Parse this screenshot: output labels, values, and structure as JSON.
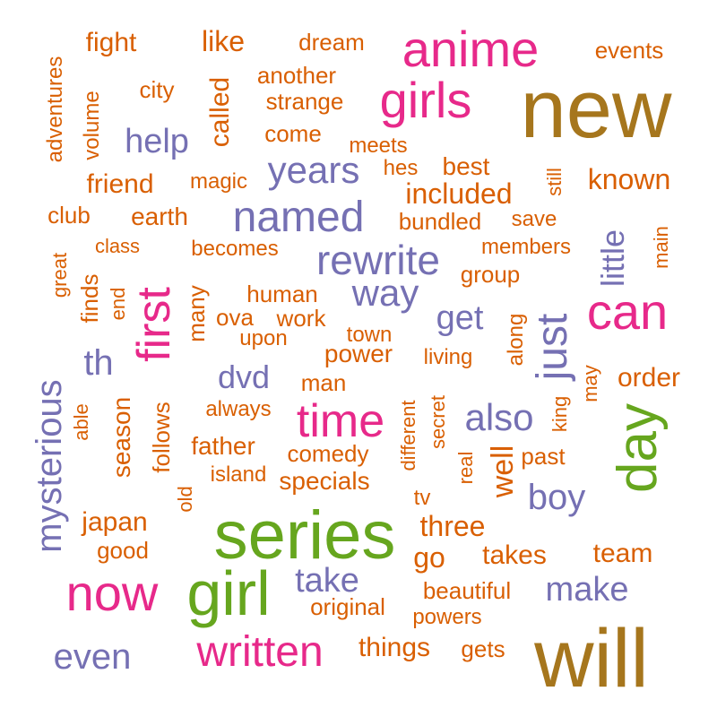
{
  "palette": {
    "brown": "#a6761d",
    "orange": "#d95f02",
    "purple": "#7570b3",
    "pink": "#e7298a",
    "green": "#66a61e"
  },
  "words": [
    {
      "text": "new",
      "color": "brown"
    },
    {
      "text": "will",
      "color": "brown"
    },
    {
      "text": "series",
      "color": "green"
    },
    {
      "text": "girl",
      "color": "green"
    },
    {
      "text": "day",
      "color": "green"
    },
    {
      "text": "anime",
      "color": "pink"
    },
    {
      "text": "girls",
      "color": "pink"
    },
    {
      "text": "can",
      "color": "pink"
    },
    {
      "text": "time",
      "color": "pink"
    },
    {
      "text": "first",
      "color": "pink"
    },
    {
      "text": "now",
      "color": "pink"
    },
    {
      "text": "written",
      "color": "pink"
    },
    {
      "text": "named",
      "color": "purple"
    },
    {
      "text": "rewrite",
      "color": "purple"
    },
    {
      "text": "way",
      "color": "purple"
    },
    {
      "text": "years",
      "color": "purple"
    },
    {
      "text": "help",
      "color": "purple"
    },
    {
      "text": "also",
      "color": "purple"
    },
    {
      "text": "just",
      "color": "purple"
    },
    {
      "text": "get",
      "color": "purple"
    },
    {
      "text": "boy",
      "color": "purple"
    },
    {
      "text": "make",
      "color": "purple"
    },
    {
      "text": "take",
      "color": "purple"
    },
    {
      "text": "even",
      "color": "purple"
    },
    {
      "text": "mysterious",
      "color": "purple"
    },
    {
      "text": "little",
      "color": "purple"
    },
    {
      "text": "dvd",
      "color": "purple"
    },
    {
      "text": "th",
      "color": "purple"
    },
    {
      "text": "well",
      "color": "orange"
    },
    {
      "text": "fight",
      "color": "orange"
    },
    {
      "text": "like",
      "color": "orange"
    },
    {
      "text": "dream",
      "color": "orange"
    },
    {
      "text": "events",
      "color": "orange"
    },
    {
      "text": "adventures",
      "color": "orange"
    },
    {
      "text": "volume",
      "color": "orange"
    },
    {
      "text": "city",
      "color": "orange"
    },
    {
      "text": "another",
      "color": "orange"
    },
    {
      "text": "strange",
      "color": "orange"
    },
    {
      "text": "called",
      "color": "orange"
    },
    {
      "text": "come",
      "color": "orange"
    },
    {
      "text": "meets",
      "color": "orange"
    },
    {
      "text": "hes",
      "color": "orange"
    },
    {
      "text": "best",
      "color": "orange"
    },
    {
      "text": "friend",
      "color": "orange"
    },
    {
      "text": "magic",
      "color": "orange"
    },
    {
      "text": "included",
      "color": "orange"
    },
    {
      "text": "still",
      "color": "orange"
    },
    {
      "text": "known",
      "color": "orange"
    },
    {
      "text": "club",
      "color": "orange"
    },
    {
      "text": "earth",
      "color": "orange"
    },
    {
      "text": "bundled",
      "color": "orange"
    },
    {
      "text": "save",
      "color": "orange"
    },
    {
      "text": "main",
      "color": "orange"
    },
    {
      "text": "class",
      "color": "orange"
    },
    {
      "text": "becomes",
      "color": "orange"
    },
    {
      "text": "members",
      "color": "orange"
    },
    {
      "text": "great",
      "color": "orange"
    },
    {
      "text": "finds",
      "color": "orange"
    },
    {
      "text": "end",
      "color": "orange"
    },
    {
      "text": "many",
      "color": "orange"
    },
    {
      "text": "human",
      "color": "orange"
    },
    {
      "text": "group",
      "color": "orange"
    },
    {
      "text": "ova",
      "color": "orange"
    },
    {
      "text": "work",
      "color": "orange"
    },
    {
      "text": "upon",
      "color": "orange"
    },
    {
      "text": "town",
      "color": "orange"
    },
    {
      "text": "along",
      "color": "orange"
    },
    {
      "text": "power",
      "color": "orange"
    },
    {
      "text": "living",
      "color": "orange"
    },
    {
      "text": "may",
      "color": "orange"
    },
    {
      "text": "order",
      "color": "orange"
    },
    {
      "text": "man",
      "color": "orange"
    },
    {
      "text": "always",
      "color": "orange"
    },
    {
      "text": "able",
      "color": "orange"
    },
    {
      "text": "season",
      "color": "orange"
    },
    {
      "text": "follows",
      "color": "orange"
    },
    {
      "text": "different",
      "color": "orange"
    },
    {
      "text": "secret",
      "color": "orange"
    },
    {
      "text": "king",
      "color": "orange"
    },
    {
      "text": "father",
      "color": "orange"
    },
    {
      "text": "comedy",
      "color": "orange"
    },
    {
      "text": "past",
      "color": "orange"
    },
    {
      "text": "island",
      "color": "orange"
    },
    {
      "text": "specials",
      "color": "orange"
    },
    {
      "text": "real",
      "color": "orange"
    },
    {
      "text": "old",
      "color": "orange"
    },
    {
      "text": "tv",
      "color": "orange"
    },
    {
      "text": "japan",
      "color": "orange"
    },
    {
      "text": "three",
      "color": "orange"
    },
    {
      "text": "good",
      "color": "orange"
    },
    {
      "text": "go",
      "color": "orange"
    },
    {
      "text": "takes",
      "color": "orange"
    },
    {
      "text": "team",
      "color": "orange"
    },
    {
      "text": "beautiful",
      "color": "orange"
    },
    {
      "text": "original",
      "color": "orange"
    },
    {
      "text": "powers",
      "color": "orange"
    },
    {
      "text": "things",
      "color": "orange"
    },
    {
      "text": "gets",
      "color": "orange"
    }
  ]
}
